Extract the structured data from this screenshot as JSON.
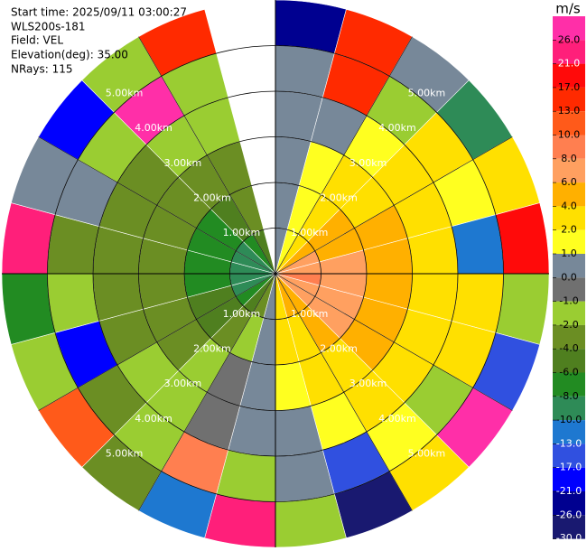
{
  "header": {
    "lines": [
      "Start time: 2025/09/11 03:00:27",
      "WLS200s-181",
      "Field: VEL",
      "Elevation(deg): 35.00",
      "NRays: 115"
    ]
  },
  "chart_data": {
    "type": "ppi",
    "rlim": [
      0,
      6
    ],
    "rticks": [
      {
        "value": 1,
        "label": "1.00km"
      },
      {
        "value": 2,
        "label": "2.00km"
      },
      {
        "value": 3,
        "label": "3.00km"
      },
      {
        "value": 4,
        "label": "4.00km"
      },
      {
        "value": 5,
        "label": "5.00km"
      }
    ],
    "field": {
      "values": [
        [
          0,
          1.8,
          3.7,
          5.4,
          6.7,
          7.6,
          8,
          7.8,
          7,
          5.8,
          4.3,
          2.4,
          0.3,
          -2.1,
          -4.5,
          -6.8,
          -8.4,
          -9.5,
          -10,
          -9.7,
          -8.8,
          -7.3,
          -5.4,
          null
        ],
        [
          0,
          1.5,
          3.2,
          4.8,
          5.9,
          6.7,
          7,
          6.8,
          6.2,
          5.1,
          3.8,
          2.1,
          0.3,
          -1.5,
          -3.2,
          -4.8,
          -5.9,
          -6.7,
          -7,
          -6.8,
          -6.2,
          -5.1,
          -3.8,
          null
        ],
        [
          0,
          1.1,
          2.3,
          3.4,
          4.2,
          4.8,
          5,
          4.9,
          4.4,
          3.7,
          2.7,
          1.5,
          0.2,
          -0.8,
          -1.8,
          -2.7,
          -3.4,
          -3.8,
          -4,
          -3.9,
          -3.5,
          -2.9,
          -2.2,
          null
        ],
        [
          0.5,
          0.7,
          1.4,
          2,
          2.5,
          2.9,
          3,
          2.9,
          2.6,
          2.2,
          1.6,
          0.9,
          0.1,
          -0.5,
          -1.1,
          -1.7,
          -2.1,
          -2.4,
          -2.5,
          -2.4,
          -2.2,
          -1.8,
          -1.4,
          null
        ],
        [
          0.5,
          13,
          -1.5,
          2.5,
          1.5,
          -13,
          2.5,
          3,
          -1.5,
          1.5,
          -17,
          0.5,
          -1.5,
          8,
          -1.5,
          -3,
          -21,
          -1.5,
          -2.5,
          0.5,
          -1.5,
          26,
          -1.5,
          null
        ],
        [
          -26,
          15,
          0.5,
          -10,
          3,
          19,
          -1.5,
          -17,
          28,
          2.5,
          -30,
          -1.5,
          22,
          -13,
          -3,
          11,
          -1.5,
          -8,
          24,
          0.5,
          -19,
          -1.5,
          14,
          null
        ]
      ]
    },
    "colorbar": {
      "title": "m/s",
      "ticks": [
        {
          "value": 26,
          "label": "26.0"
        },
        {
          "value": 21,
          "label": "21.0"
        },
        {
          "value": 17,
          "label": "17.0"
        },
        {
          "value": 13,
          "label": "13.0"
        },
        {
          "value": 10,
          "label": "10.0"
        },
        {
          "value": 8,
          "label": "8.0"
        },
        {
          "value": 6,
          "label": "6.0"
        },
        {
          "value": 4,
          "label": "4.0"
        },
        {
          "value": 2,
          "label": "2.0"
        },
        {
          "value": 1,
          "label": "1.0"
        },
        {
          "value": 0,
          "label": "0.0"
        },
        {
          "value": -1,
          "label": "-1.0"
        },
        {
          "value": -2,
          "label": "-2.0"
        },
        {
          "value": -4,
          "label": "-4.0"
        },
        {
          "value": -6,
          "label": "-6.0"
        },
        {
          "value": -8,
          "label": "-8.0"
        },
        {
          "value": -10,
          "label": "-10.0"
        },
        {
          "value": -13,
          "label": "-13.0"
        },
        {
          "value": -17,
          "label": "-17.0"
        },
        {
          "value": -21,
          "label": "-21.0"
        },
        {
          "value": -26,
          "label": "-26.0"
        },
        {
          "value": -30,
          "label": "-30.0"
        }
      ],
      "colors": [
        "#ff2fa8",
        "#ff1f7a",
        "#ff0a0a",
        "#ff2a00",
        "#ff5a1a",
        "#ff7f50",
        "#ffa060",
        "#ffb000",
        "#ffe000",
        "#ffff20",
        "#778899",
        "#707070",
        "#9acd32",
        "#6b8e23",
        "#4f7f1f",
        "#228b22",
        "#2e8b57",
        "#1e78d0",
        "#3050e0",
        "#0000ff",
        "#000090",
        "#191970"
      ]
    }
  }
}
